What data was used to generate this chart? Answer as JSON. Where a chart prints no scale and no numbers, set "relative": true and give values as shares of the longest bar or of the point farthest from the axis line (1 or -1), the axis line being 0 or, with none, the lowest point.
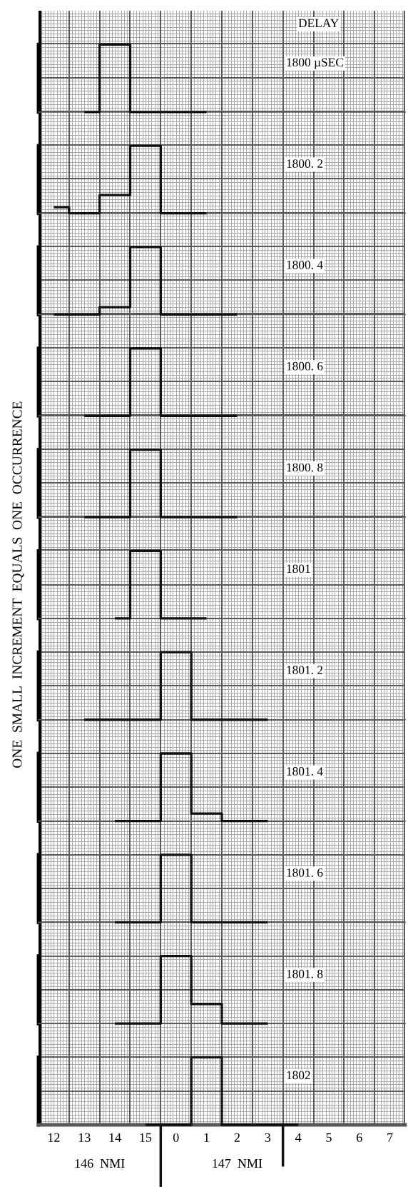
{
  "chart_data": [
    {
      "type": "step",
      "relative": true,
      "title": "1800 µSEC",
      "annotations": [
        "DELAY"
      ],
      "categories": [
        "12",
        "13",
        "14",
        "15",
        "0",
        "1",
        "2",
        "3",
        "4",
        "5",
        "6",
        "7"
      ],
      "color": "#111111",
      "values": [
        null,
        0,
        1,
        0,
        0,
        0,
        null,
        null,
        null,
        null,
        null,
        null
      ],
      "tick_labels": false
    },
    {
      "type": "step",
      "relative": true,
      "title": "1800. 2",
      "categories": [
        "12",
        "13",
        "14",
        "15",
        "0",
        "1",
        "2",
        "3",
        "4",
        "5",
        "6",
        "7"
      ],
      "color": "#111111",
      "values": [
        0.09,
        0,
        0.27,
        1,
        0,
        0,
        null,
        null,
        null,
        null,
        null,
        null
      ],
      "tick_labels": false
    },
    {
      "type": "step",
      "relative": true,
      "title": "1800. 4",
      "categories": [
        "12",
        "13",
        "14",
        "15",
        "0",
        "1",
        "2",
        "3",
        "4",
        "5",
        "6",
        "7"
      ],
      "color": "#111111",
      "values": [
        0,
        0,
        0.11,
        1,
        0,
        0,
        0,
        null,
        null,
        null,
        null,
        null
      ],
      "tick_labels": false
    },
    {
      "type": "step",
      "relative": true,
      "title": "1800. 6",
      "categories": [
        "12",
        "13",
        "14",
        "15",
        "0",
        "1",
        "2",
        "3",
        "4",
        "5",
        "6",
        "7"
      ],
      "color": "#111111",
      "values": [
        null,
        0,
        0,
        1,
        0,
        0,
        0,
        null,
        null,
        null,
        null,
        null
      ],
      "tick_labels": false
    },
    {
      "type": "step",
      "relative": true,
      "title": "1800. 8",
      "categories": [
        "12",
        "13",
        "14",
        "15",
        "0",
        "1",
        "2",
        "3",
        "4",
        "5",
        "6",
        "7"
      ],
      "color": "#111111",
      "values": [
        null,
        0,
        0,
        1,
        0,
        0,
        0,
        null,
        null,
        null,
        null,
        null
      ],
      "tick_labels": false
    },
    {
      "type": "step",
      "relative": true,
      "title": "1801",
      "ylabel": "ONE  SMALL  INCREMENT  EQUALS  ONE  OCCURRENCE",
      "categories": [
        "12",
        "13",
        "14",
        "15",
        "0",
        "1",
        "2",
        "3",
        "4",
        "5",
        "6",
        "7"
      ],
      "color": "#111111",
      "values": [
        null,
        null,
        0,
        1,
        0,
        0,
        null,
        null,
        null,
        null,
        null,
        null
      ],
      "tick_labels": false
    },
    {
      "type": "step",
      "relative": true,
      "title": "1801. 2",
      "categories": [
        "12",
        "13",
        "14",
        "15",
        "0",
        "1",
        "2",
        "3",
        "4",
        "5",
        "6",
        "7"
      ],
      "color": "#111111",
      "values": [
        null,
        0,
        0,
        0,
        1,
        0,
        0,
        0,
        null,
        null,
        null,
        null
      ],
      "tick_labels": false
    },
    {
      "type": "step",
      "relative": true,
      "title": "1801. 4",
      "categories": [
        "12",
        "13",
        "14",
        "15",
        "0",
        "1",
        "2",
        "3",
        "4",
        "5",
        "6",
        "7"
      ],
      "color": "#111111",
      "values": [
        null,
        null,
        0,
        0,
        1,
        0.11,
        0,
        0,
        null,
        null,
        null,
        null
      ],
      "tick_labels": false
    },
    {
      "type": "step",
      "relative": true,
      "title": "1801. 6",
      "categories": [
        "12",
        "13",
        "14",
        "15",
        "0",
        "1",
        "2",
        "3",
        "4",
        "5",
        "6",
        "7"
      ],
      "color": "#111111",
      "values": [
        null,
        null,
        0,
        0,
        1,
        0,
        0,
        0,
        null,
        null,
        null,
        null
      ],
      "tick_labels": false
    },
    {
      "type": "step",
      "relative": true,
      "title": "1801. 8",
      "categories": [
        "12",
        "13",
        "14",
        "15",
        "0",
        "1",
        "2",
        "3",
        "4",
        "5",
        "6",
        "7"
      ],
      "color": "#111111",
      "values": [
        null,
        null,
        0,
        0,
        1,
        0.29,
        0,
        0,
        null,
        null,
        null,
        null
      ],
      "tick_labels": false
    },
    {
      "type": "step",
      "relative": true,
      "title": "1802",
      "annotations": [
        "146  NMI",
        "147  NMI"
      ],
      "categories": [
        "12",
        "13",
        "14",
        "15",
        "0",
        "1",
        "2",
        "3",
        "4",
        "5",
        "6",
        "7"
      ],
      "color": "#111111",
      "values": [
        null,
        null,
        null,
        0,
        0,
        1,
        0,
        0,
        0,
        null,
        null,
        null
      ],
      "tick_labels": "x"
    }
  ]
}
